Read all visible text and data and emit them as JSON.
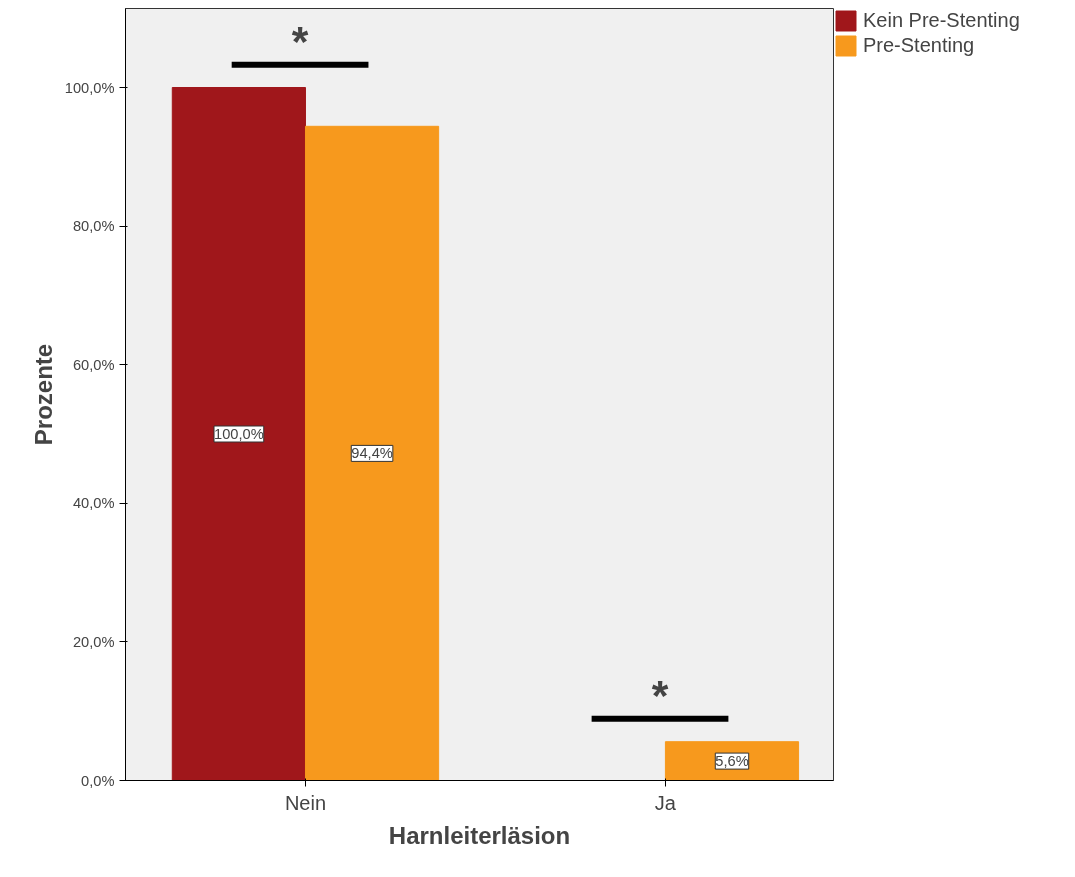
{
  "chart_data": {
    "type": "bar",
    "xlabel": "Harnleiterläsion",
    "ylabel": "Prozente",
    "categories": [
      "Nein",
      "Ja"
    ],
    "series": [
      {
        "name": "Kein Pre-Stenting",
        "color": "#a0171b",
        "values": [
          100.0,
          0.0
        ],
        "value_labels": [
          "100,0%",
          null
        ]
      },
      {
        "name": "Pre-Stenting",
        "color": "#f7991d",
        "values": [
          94.4,
          5.6
        ],
        "value_labels": [
          "94,4%",
          "5,6%"
        ]
      }
    ],
    "ylim": [
      0,
      111.4
    ],
    "yticks": [
      {
        "value": 0,
        "label": "0,0%"
      },
      {
        "value": 20,
        "label": "20,0%"
      },
      {
        "value": 40,
        "label": "40,0%"
      },
      {
        "value": 60,
        "label": "60,0%"
      },
      {
        "value": 80,
        "label": "80,0%"
      },
      {
        "value": 100,
        "label": "100,0%"
      }
    ],
    "annotations": [
      "*",
      "*"
    ],
    "grid": false,
    "legend": "top right"
  }
}
